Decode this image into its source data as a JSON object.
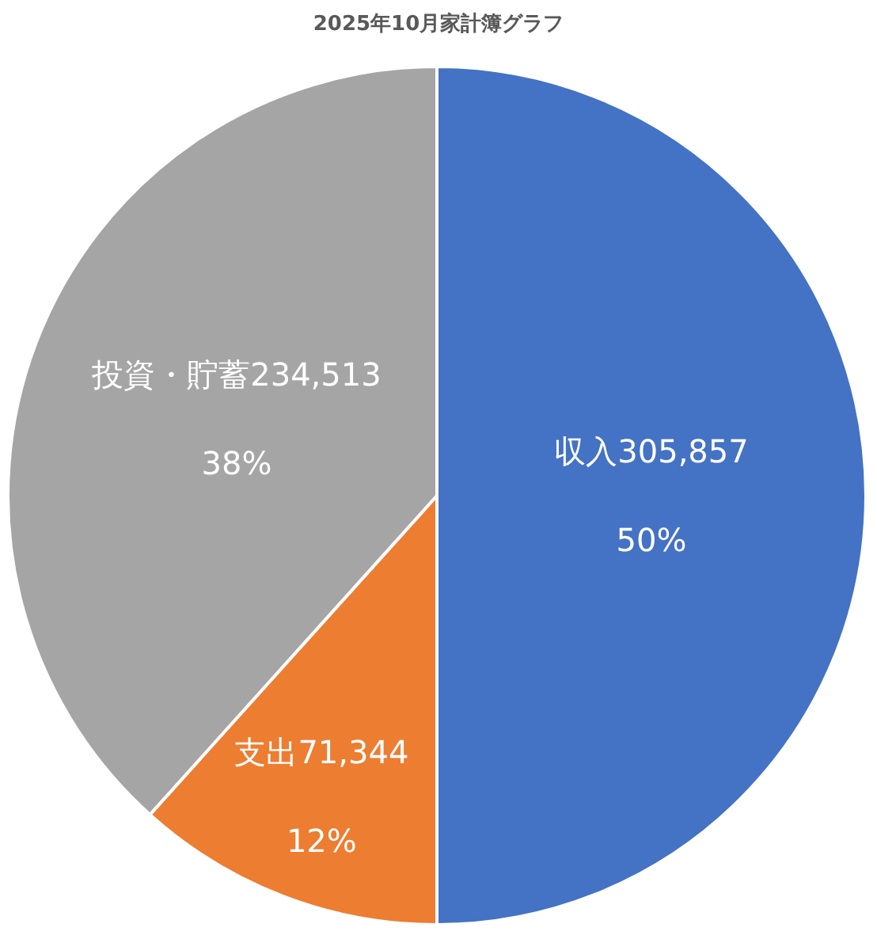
{
  "chart_data": {
    "type": "pie",
    "title": "2025年10月家計簿グラフ",
    "categories": [
      "収入",
      "支出",
      "投資・貯蓄"
    ],
    "values": [
      305857,
      71344,
      234513
    ],
    "colors": [
      "#4472c4",
      "#ed7d31",
      "#a5a5a5"
    ],
    "value_labels": [
      "305,857",
      "71,344",
      "234,513"
    ],
    "annotations": [
      "50%",
      "12%",
      "38%"
    ],
    "legend": false
  }
}
